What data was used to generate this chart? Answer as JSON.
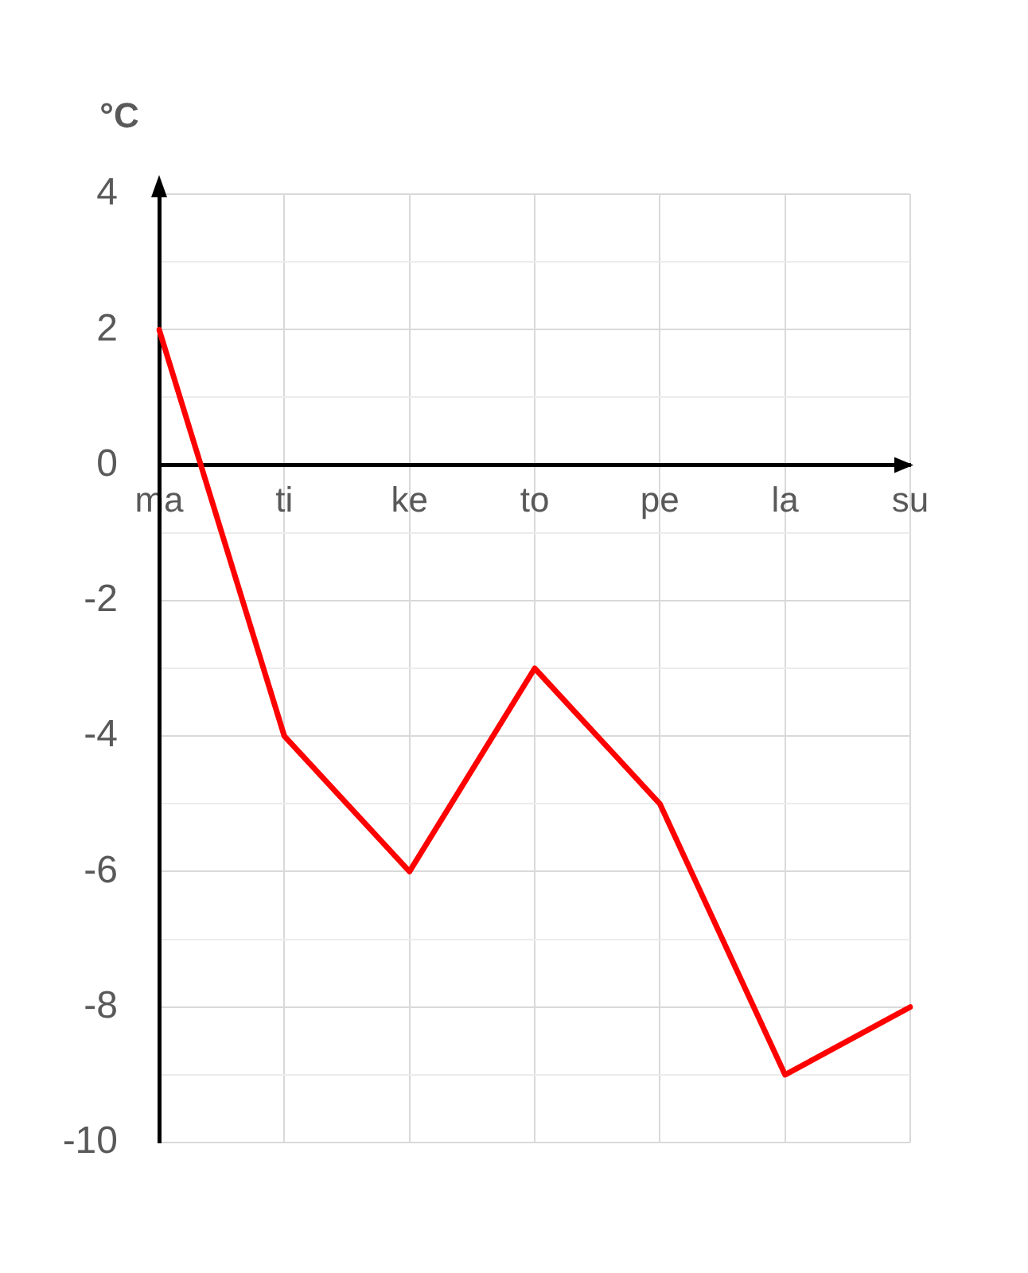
{
  "chart_data": {
    "type": "line",
    "ylabel": "°C",
    "categories": [
      "ma",
      "ti",
      "ke",
      "to",
      "pe",
      "la",
      "su"
    ],
    "series": [
      {
        "color": "#ff0000",
        "values": [
          2,
          -4,
          -6,
          -3,
          -5,
          -9,
          -8
        ]
      }
    ],
    "ylim": [
      -10,
      4
    ],
    "yticks": [
      -10,
      {
        "value": -9,
        "label": null
      },
      -8,
      {
        "value": -7,
        "label": null
      },
      -6,
      {
        "value": -5,
        "label": null
      },
      -4,
      {
        "value": -3,
        "label": null
      },
      -2,
      {
        "value": -1,
        "label": null
      },
      0,
      {
        "value": 1,
        "label": null
      },
      2,
      {
        "value": 3,
        "label": null
      },
      4
    ],
    "grid": true,
    "legend": false,
    "marker": "none",
    "line_style": "solid"
  }
}
